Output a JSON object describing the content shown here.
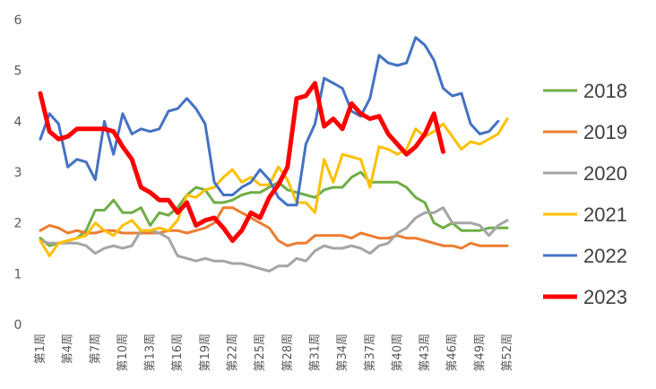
{
  "chart_data": {
    "type": "line",
    "title": "",
    "xlabel": "",
    "ylabel": "",
    "ylim": [
      0,
      6
    ],
    "yticks": [
      0,
      1,
      2,
      3,
      4,
      5,
      6
    ],
    "x": [
      "第1周",
      "第2周",
      "第3周",
      "第4周",
      "第5周",
      "第6周",
      "第7周",
      "第8周",
      "第9周",
      "第10周",
      "第11周",
      "第12周",
      "第13周",
      "第14周",
      "第15周",
      "第16周",
      "第17周",
      "第18周",
      "第19周",
      "第20周",
      "第21周",
      "第22周",
      "第23周",
      "第24周",
      "第25周",
      "第26周",
      "第27周",
      "第28周",
      "第29周",
      "第30周",
      "第31周",
      "第32周",
      "第33周",
      "第34周",
      "第35周",
      "第36周",
      "第37周",
      "第38周",
      "第39周",
      "第40周",
      "第41周",
      "第42周",
      "第43周",
      "第44周",
      "第45周",
      "第46周",
      "第47周",
      "第48周",
      "第49周",
      "第50周",
      "第51周",
      "第52周"
    ],
    "xtick_labels": [
      "第1周",
      "第4周",
      "第7周",
      "第10周",
      "第13周",
      "第16周",
      "第19周",
      "第22周",
      "第25周",
      "第28周",
      "第31周",
      "第34周",
      "第37周",
      "第40周",
      "第43周",
      "第46周",
      "第49周",
      "第52周"
    ],
    "legend_position": "right",
    "grid": false,
    "series": [
      {
        "name": "2018",
        "color": "#70AD47",
        "width": 3,
        "values": [
          1.7,
          1.55,
          1.6,
          1.65,
          1.7,
          1.85,
          2.25,
          2.25,
          2.45,
          2.2,
          2.2,
          2.3,
          1.95,
          2.2,
          2.15,
          2.3,
          2.55,
          2.7,
          2.65,
          2.4,
          2.4,
          2.45,
          2.55,
          2.6,
          2.6,
          2.7,
          2.8,
          2.65,
          2.6,
          2.55,
          2.5,
          2.65,
          2.7,
          2.7,
          2.9,
          3.0,
          2.8,
          2.8,
          2.8,
          2.8,
          2.7,
          2.5,
          2.4,
          2.0,
          1.9,
          2.0,
          1.85,
          1.85,
          1.85,
          1.9,
          1.9,
          1.9
        ]
      },
      {
        "name": "2019",
        "color": "#ED7D31",
        "width": 3,
        "values": [
          1.85,
          1.95,
          1.9,
          1.8,
          1.85,
          1.8,
          1.8,
          1.85,
          1.85,
          1.8,
          1.8,
          1.8,
          1.8,
          1.8,
          1.85,
          1.85,
          1.8,
          1.85,
          1.9,
          2.0,
          2.3,
          2.3,
          2.2,
          2.1,
          2.0,
          1.9,
          1.65,
          1.55,
          1.6,
          1.6,
          1.75,
          1.75,
          1.75,
          1.75,
          1.7,
          1.8,
          1.75,
          1.7,
          1.7,
          1.75,
          1.7,
          1.7,
          1.65,
          1.6,
          1.55,
          1.55,
          1.5,
          1.6,
          1.55,
          1.55,
          1.55,
          1.55
        ]
      },
      {
        "name": "2020",
        "color": "#A5A5A5",
        "width": 3,
        "values": [
          1.65,
          1.6,
          1.6,
          1.6,
          1.6,
          1.55,
          1.4,
          1.5,
          1.55,
          1.5,
          1.55,
          1.85,
          1.85,
          1.8,
          1.7,
          1.35,
          1.3,
          1.25,
          1.3,
          1.25,
          1.25,
          1.2,
          1.2,
          1.15,
          1.1,
          1.05,
          1.15,
          1.15,
          1.3,
          1.25,
          1.45,
          1.55,
          1.5,
          1.5,
          1.55,
          1.5,
          1.4,
          1.55,
          1.6,
          1.8,
          1.9,
          2.1,
          2.2,
          2.2,
          2.3,
          2.0,
          2.0,
          2.0,
          1.95,
          1.75,
          1.95,
          2.05
        ]
      },
      {
        "name": "2021",
        "color": "#FFC000",
        "width": 3,
        "values": [
          1.65,
          1.35,
          1.6,
          1.65,
          1.7,
          1.75,
          2.0,
          1.85,
          1.75,
          1.95,
          2.05,
          1.85,
          1.85,
          1.9,
          1.85,
          2.05,
          2.55,
          2.5,
          2.65,
          2.7,
          2.9,
          3.05,
          2.8,
          2.9,
          2.75,
          2.75,
          3.1,
          2.85,
          2.4,
          2.4,
          2.2,
          3.25,
          2.8,
          3.35,
          3.3,
          3.25,
          2.7,
          3.5,
          3.45,
          3.35,
          3.45,
          3.85,
          3.7,
          3.8,
          3.95,
          3.7,
          3.45,
          3.6,
          3.55,
          3.65,
          3.75,
          4.05
        ]
      },
      {
        "name": "2022",
        "color": "#4472C4",
        "width": 3,
        "values": [
          3.65,
          4.15,
          3.95,
          3.1,
          3.25,
          3.2,
          2.85,
          4.0,
          3.35,
          4.15,
          3.75,
          3.85,
          3.8,
          3.85,
          4.2,
          4.25,
          4.45,
          4.25,
          3.95,
          2.8,
          2.55,
          2.55,
          2.7,
          2.8,
          3.05,
          2.85,
          2.5,
          2.35,
          2.35,
          3.55,
          3.95,
          4.85,
          4.75,
          4.65,
          4.2,
          4.1,
          4.45,
          5.3,
          5.15,
          5.1,
          5.15,
          5.65,
          5.5,
          5.2,
          4.65,
          4.5,
          4.55,
          3.95,
          3.75,
          3.8,
          4.0,
          null
        ]
      },
      {
        "name": "2023",
        "color": "#FF0000",
        "width": 5,
        "values": [
          4.55,
          3.8,
          3.65,
          3.7,
          3.85,
          3.85,
          3.85,
          3.85,
          3.8,
          3.5,
          3.25,
          2.7,
          2.6,
          2.45,
          2.45,
          2.2,
          2.4,
          1.95,
          2.05,
          2.1,
          1.9,
          1.65,
          1.85,
          2.2,
          2.1,
          2.5,
          2.75,
          3.1,
          4.45,
          4.5,
          4.75,
          3.9,
          4.05,
          3.85,
          4.35,
          4.15,
          4.05,
          4.1,
          3.75,
          3.55,
          3.35,
          3.5,
          3.75,
          4.15,
          3.4,
          null,
          null,
          null,
          null,
          null,
          null,
          null
        ]
      }
    ]
  }
}
